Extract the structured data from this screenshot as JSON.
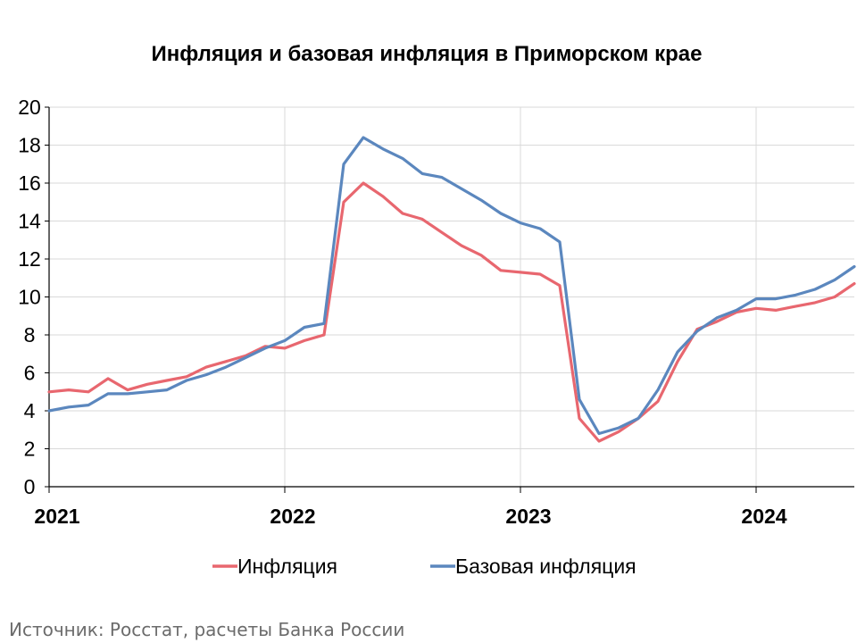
{
  "chart_data": {
    "type": "line",
    "title": "Инфляция и базовая инфляция в Приморском крае",
    "xlabel": "",
    "ylabel": "",
    "ylim": [
      0,
      20
    ],
    "yticks": [
      0,
      2,
      4,
      6,
      8,
      10,
      12,
      14,
      16,
      18,
      20
    ],
    "xlim": [
      2021.0,
      2024.4167
    ],
    "xticks": [
      {
        "value": 2021,
        "label": "2021"
      },
      {
        "value": 2022,
        "label": "2022"
      },
      {
        "value": 2023,
        "label": "2023"
      },
      {
        "value": 2024,
        "label": "2024"
      }
    ],
    "grid": true,
    "legend_position": "bottom",
    "x": [
      "2021-01",
      "2021-02",
      "2021-03",
      "2021-04",
      "2021-05",
      "2021-06",
      "2021-07",
      "2021-08",
      "2021-09",
      "2021-10",
      "2021-11",
      "2021-12",
      "2022-01",
      "2022-02",
      "2022-03",
      "2022-04",
      "2022-05",
      "2022-06",
      "2022-07",
      "2022-08",
      "2022-09",
      "2022-10",
      "2022-11",
      "2022-12",
      "2023-01",
      "2023-02",
      "2023-03",
      "2023-04",
      "2023-05",
      "2023-06",
      "2023-07",
      "2023-08",
      "2023-09",
      "2023-10",
      "2023-11",
      "2023-12",
      "2024-01",
      "2024-02",
      "2024-03",
      "2024-04",
      "2024-05",
      "2024-06"
    ],
    "series": [
      {
        "name": "Инфляция",
        "color": "#e8676f",
        "values": [
          5.0,
          5.1,
          5.0,
          5.7,
          5.1,
          5.4,
          5.6,
          5.8,
          6.3,
          6.6,
          6.9,
          7.4,
          7.3,
          7.7,
          8.0,
          15.0,
          16.0,
          15.3,
          14.4,
          14.1,
          13.4,
          12.7,
          12.2,
          11.4,
          11.3,
          11.2,
          10.6,
          3.6,
          2.4,
          2.9,
          3.6,
          4.5,
          6.6,
          8.3,
          8.7,
          9.2,
          9.4,
          9.3,
          9.5,
          9.7,
          10.0,
          10.7
        ]
      },
      {
        "name": "Базовая инфляция",
        "color": "#5b87be",
        "values": [
          4.0,
          4.2,
          4.3,
          4.9,
          4.9,
          5.0,
          5.1,
          5.6,
          5.9,
          6.3,
          6.8,
          7.3,
          7.7,
          8.4,
          8.6,
          17.0,
          18.4,
          17.8,
          17.3,
          16.5,
          16.3,
          15.7,
          15.1,
          14.4,
          13.9,
          13.6,
          12.9,
          4.6,
          2.8,
          3.1,
          3.6,
          5.1,
          7.1,
          8.2,
          8.9,
          9.3,
          9.9,
          9.9,
          10.1,
          10.4,
          10.9,
          11.6
        ]
      }
    ]
  },
  "source": "Источник: Росстат, расчеты Банка России"
}
